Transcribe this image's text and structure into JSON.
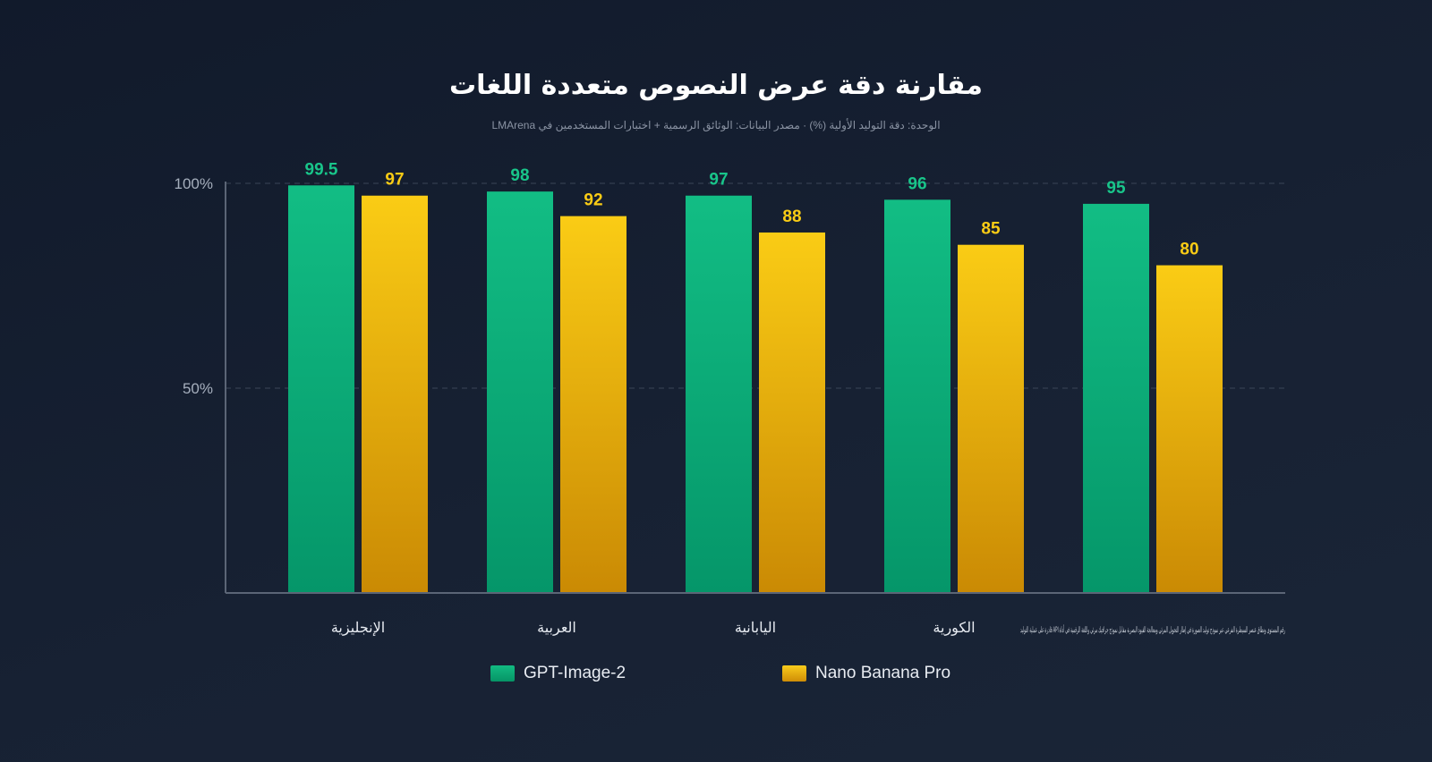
{
  "title": "مقارنة دقة عرض النصوص متعددة اللغات",
  "subtitle": "الوحدة: دقة التوليد الأولية (%) · مصدر البيانات: الوثائق الرسمية + اختبارات المستخدمين في LMArena",
  "colors": {
    "series1": "#10b981",
    "series2": "#facc15",
    "axis": "#5b6576",
    "grid": "#3a4557",
    "tick_text": "#a6afbd"
  },
  "chart_data": {
    "type": "bar",
    "title": "مقارنة دقة عرض النصوص متعددة اللغات",
    "subtitle": "الوحدة: دقة التوليد الأولية (%) · مصدر البيانات: الوثائق الرسمية + اختبارات المستخدمين في LMArena",
    "categories": [
      "الإنجليزية",
      "العربية",
      "اليابانية",
      "الكورية",
      "رقم المستوى ونطاق عنصر السيطرة الفرعي عبر نموذج توليد الصورة في إطار التحويل المرئي ومعالجة القيود البصرية مقابل نموذج جرافيك مرئي واللغة الرقمية في أداة API قادرة على عملية التوليد"
    ],
    "series": [
      {
        "name": "GPT-Image-2",
        "values": [
          99.5,
          98,
          97,
          96,
          95
        ]
      },
      {
        "name": "Nano Banana Pro",
        "values": [
          97,
          92,
          88,
          85,
          80
        ]
      }
    ],
    "xlabel": "",
    "ylabel": "",
    "yticks": [
      "100%",
      "50%"
    ],
    "ylim": [
      0,
      100
    ],
    "grid": true,
    "legend": "bottom-center"
  }
}
